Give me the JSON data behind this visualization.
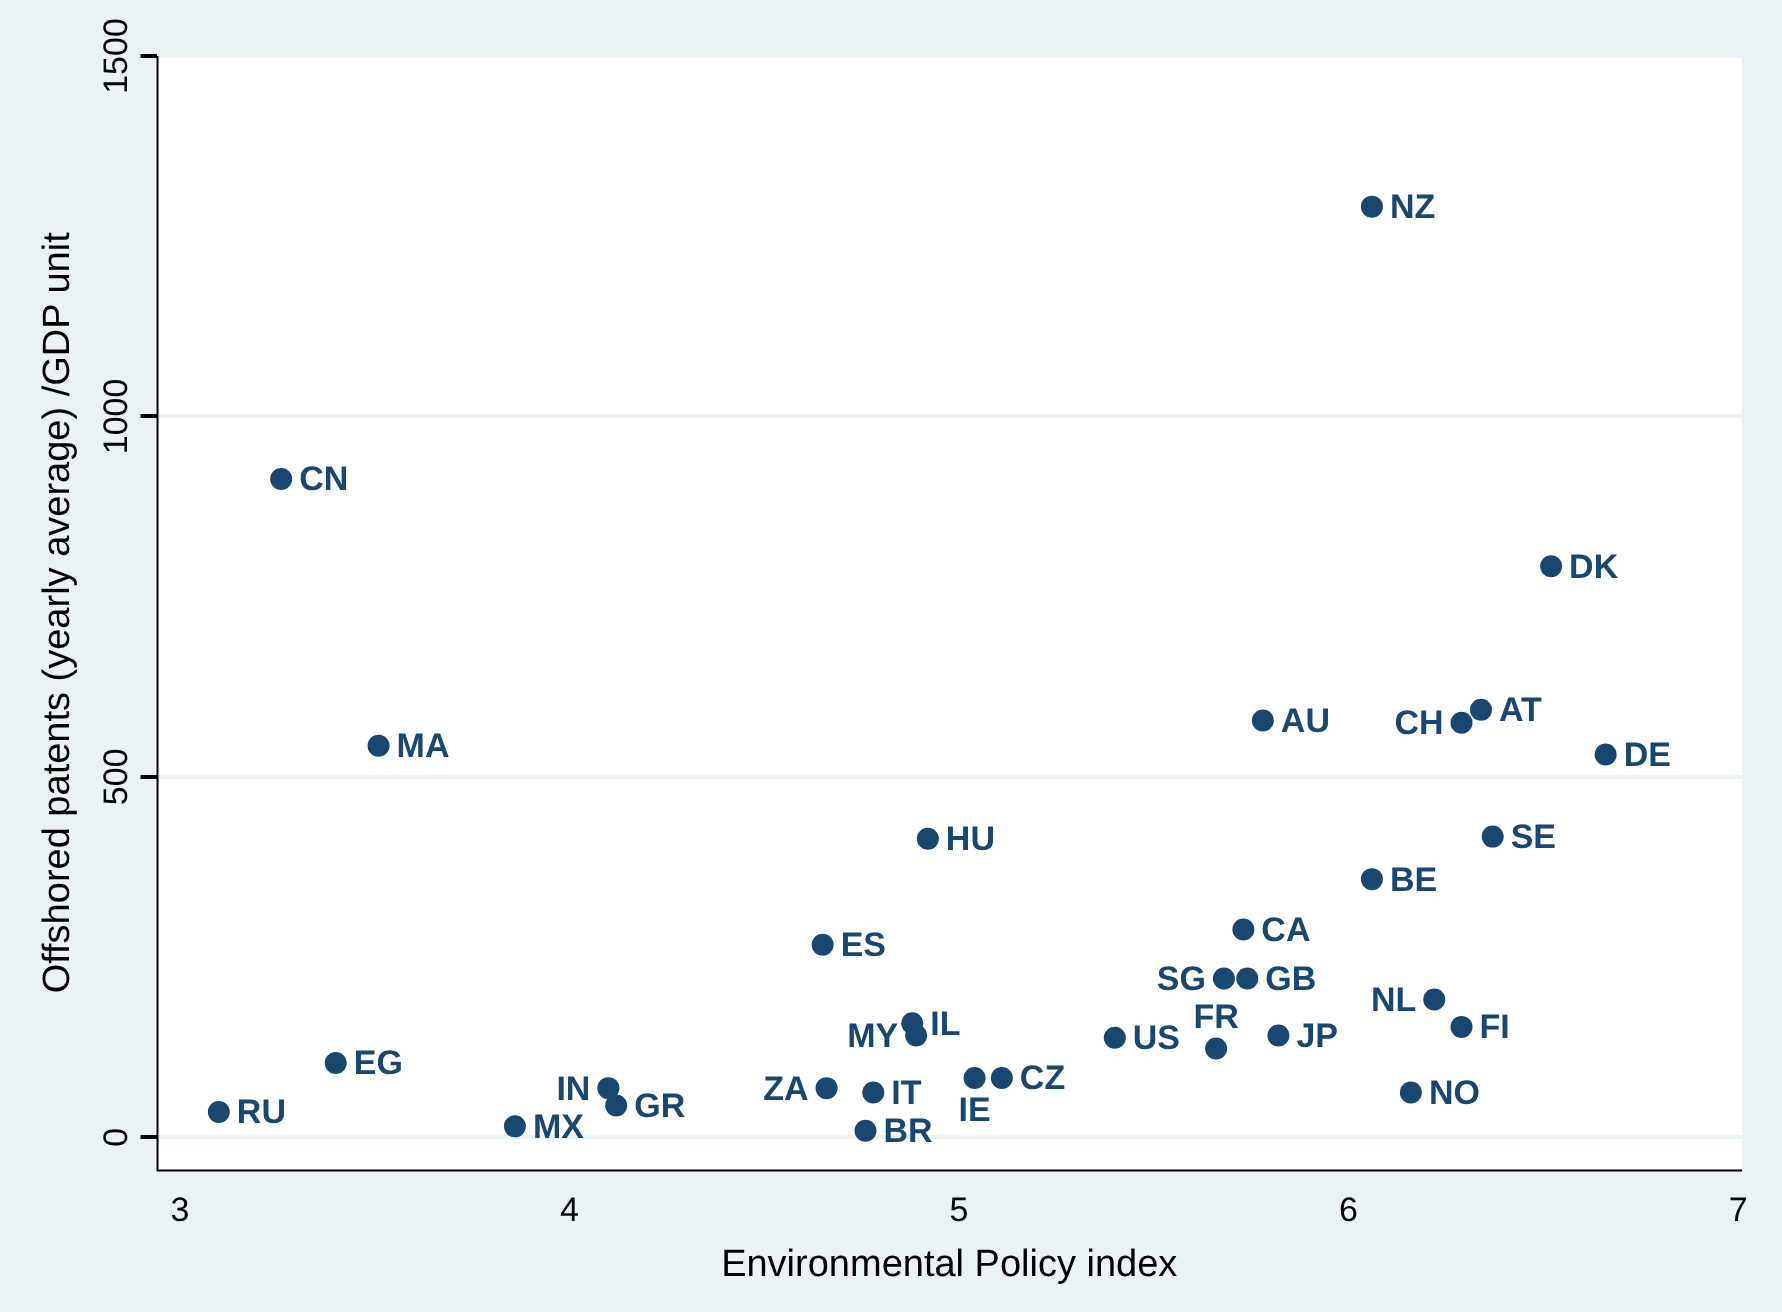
{
  "chart_data": {
    "type": "scatter",
    "xlabel": "Environmental Policy index",
    "ylabel": "Offshored patents (yearly average) /GDP unit",
    "x": [
      3.26,
      3.51,
      3.1,
      3.4,
      3.86,
      4.1,
      4.12,
      4.66,
      4.78,
      4.76,
      4.65,
      4.88,
      4.89,
      5.04,
      5.11,
      4.92,
      5.4,
      5.66,
      5.82,
      5.68,
      5.74,
      5.73,
      5.78,
      6.06,
      6.06,
      6.29,
      6.34,
      6.66,
      6.37,
      6.52,
      6.22,
      6.29,
      6.16
    ],
    "series": [
      {
        "color": "#1a476f",
        "values": [
          913,
          543,
          35,
          103,
          15,
          68,
          44,
          68,
          62,
          9,
          267,
          158,
          141,
          82,
          82,
          414,
          138,
          123,
          141,
          220,
          220,
          288,
          578,
          1291,
          358,
          575,
          593,
          531,
          417,
          792,
          191,
          153,
          62
        ]
      }
    ],
    "annotations": [
      {
        "text": "CN",
        "x": 3.26,
        "y": 913
      },
      {
        "text": "MA",
        "x": 3.51,
        "y": 543
      },
      {
        "text": "RU",
        "x": 3.1,
        "y": 35
      },
      {
        "text": "EG",
        "x": 3.4,
        "y": 103
      },
      {
        "text": "MX",
        "x": 3.86,
        "y": 15
      },
      {
        "text": "IN",
        "x": 4.1,
        "y": 68
      },
      {
        "text": "GR",
        "x": 4.12,
        "y": 44
      },
      {
        "text": "ZA",
        "x": 4.66,
        "y": 68
      },
      {
        "text": "IT",
        "x": 4.78,
        "y": 62
      },
      {
        "text": "BR",
        "x": 4.76,
        "y": 9
      },
      {
        "text": "ES",
        "x": 4.65,
        "y": 267
      },
      {
        "text": "IL",
        "x": 4.88,
        "y": 158
      },
      {
        "text": "MY",
        "x": 4.89,
        "y": 141
      },
      {
        "text": "IE",
        "x": 5.04,
        "y": 82
      },
      {
        "text": "CZ",
        "x": 5.11,
        "y": 82
      },
      {
        "text": "HU",
        "x": 4.92,
        "y": 414
      },
      {
        "text": "US",
        "x": 5.4,
        "y": 138
      },
      {
        "text": "FR",
        "x": 5.66,
        "y": 123
      },
      {
        "text": "JP",
        "x": 5.82,
        "y": 141
      },
      {
        "text": "SG",
        "x": 5.68,
        "y": 220
      },
      {
        "text": "GB",
        "x": 5.74,
        "y": 220
      },
      {
        "text": "CA",
        "x": 5.73,
        "y": 288
      },
      {
        "text": "AU",
        "x": 5.78,
        "y": 578
      },
      {
        "text": "NZ",
        "x": 6.06,
        "y": 1291
      },
      {
        "text": "BE",
        "x": 6.06,
        "y": 358
      },
      {
        "text": "CH",
        "x": 6.29,
        "y": 575
      },
      {
        "text": "AT",
        "x": 6.34,
        "y": 593
      },
      {
        "text": "DE",
        "x": 6.66,
        "y": 531
      },
      {
        "text": "SE",
        "x": 6.37,
        "y": 417
      },
      {
        "text": "DK",
        "x": 6.52,
        "y": 792
      },
      {
        "text": "NL",
        "x": 6.22,
        "y": 191
      },
      {
        "text": "FI",
        "x": 6.29,
        "y": 153
      },
      {
        "text": "NO",
        "x": 6.16,
        "y": 62
      }
    ],
    "xlim": [
      2.94,
      7.01
    ],
    "xticks": [
      3,
      4,
      5,
      6,
      7
    ],
    "ylim": [
      -45,
      1500
    ],
    "yticks": [
      0,
      500,
      1000,
      1500
    ],
    "grid": "y",
    "marker": "circle",
    "legend": false
  }
}
